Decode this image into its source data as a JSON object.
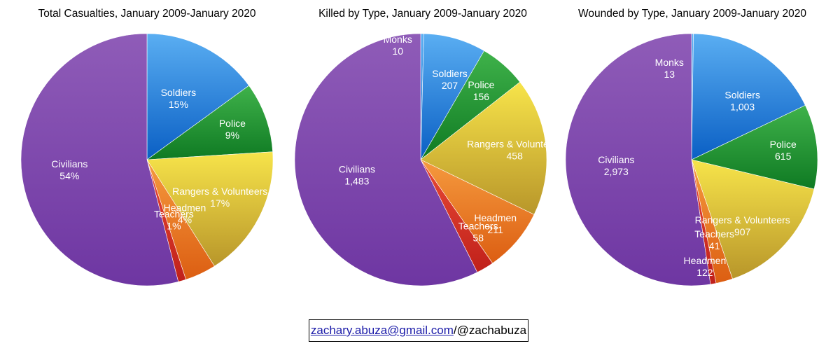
{
  "colors": {
    "Soldiers": [
      "#5aaef2",
      "#0a5fc4"
    ],
    "Police": [
      "#3fb24a",
      "#0f7a23"
    ],
    "Rangers & Volunteers": [
      "#f7e44a",
      "#b8962a"
    ],
    "Headmen": [
      "#f59a3e",
      "#dc5e12"
    ],
    "Teachers": [
      "#e84a36",
      "#c0201a"
    ],
    "Civilians": [
      "#8f5cb8",
      "#6e36a2"
    ],
    "Monks": [
      "#5aaef2",
      "#0a5fc4"
    ]
  },
  "chart_data": [
    {
      "type": "pie",
      "title": "Total Casualties, January 2009-January 2020",
      "categories": [
        "Soldiers",
        "Police",
        "Rangers & Volunteers",
        "Headmen",
        "Teachers",
        "Civilians"
      ],
      "values": [
        15,
        9,
        17,
        4,
        1,
        54
      ],
      "display": [
        "15%",
        "9%",
        "17%",
        "4%",
        "1%",
        "54%"
      ]
    },
    {
      "type": "pie",
      "title": "Killed by Type, January 2009-January 2020",
      "categories": [
        "Monks",
        "Soldiers",
        "Police",
        "Rangers & Volunteers",
        "Headmen",
        "Teachers",
        "Civilians"
      ],
      "values": [
        10,
        207,
        156,
        458,
        211,
        58,
        1483
      ],
      "display": [
        "10",
        "207",
        "156",
        "458",
        "211",
        "58",
        "1,483"
      ]
    },
    {
      "type": "pie",
      "title": "Wounded by Type, January 2009-January 2020",
      "categories": [
        "Monks",
        "Soldiers",
        "Police",
        "Rangers & Volunteers",
        "Headmen",
        "Teachers",
        "Civilians"
      ],
      "values": [
        13,
        1003,
        615,
        907,
        122,
        41,
        2973
      ],
      "display": [
        "13",
        "1,003",
        "615",
        "907",
        "122",
        "41",
        "2,973"
      ]
    }
  ],
  "contact": {
    "email": "zachary.abuza@gmail.com",
    "handle": "/@zachabuza"
  }
}
